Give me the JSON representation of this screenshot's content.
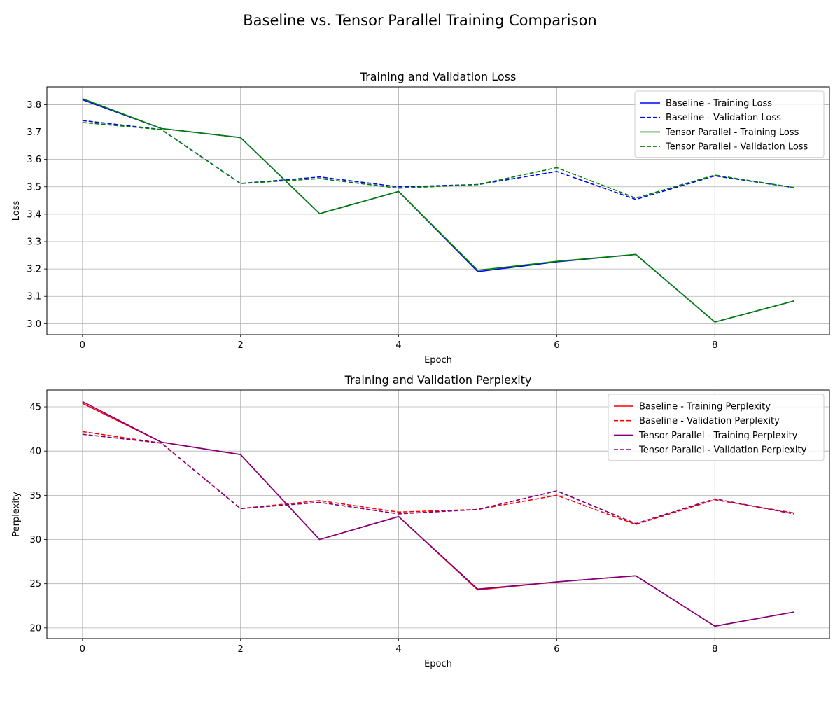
{
  "figure": {
    "suptitle": "Baseline vs. Tensor Parallel Training Comparison"
  },
  "chart_data": [
    {
      "type": "line",
      "title": "Training and Validation Loss",
      "xlabel": "Epoch",
      "ylabel": "Loss",
      "x": [
        0,
        1,
        2,
        3,
        4,
        5,
        6,
        7,
        8,
        9
      ],
      "xlim": [
        -0.45,
        9.45
      ],
      "ylim": [
        2.96,
        3.865
      ],
      "xticks": [
        0,
        2,
        4,
        6,
        8
      ],
      "yticks": [
        3.0,
        3.1,
        3.2,
        3.3,
        3.4,
        3.5,
        3.6,
        3.7,
        3.8
      ],
      "ytick_labels": [
        "3.0",
        "3.1",
        "3.2",
        "3.3",
        "3.4",
        "3.5",
        "3.6",
        "3.7",
        "3.8"
      ],
      "grid": true,
      "legend_position": "upper-right",
      "series": [
        {
          "name": "Baseline - Training Loss",
          "color": "#0000ff",
          "style": "solid",
          "values": [
            3.818,
            3.713,
            3.68,
            3.402,
            3.483,
            3.19,
            3.226,
            3.253,
            3.006,
            3.083
          ]
        },
        {
          "name": "Baseline - Validation Loss",
          "color": "#0000ff",
          "style": "dashed",
          "values": [
            3.742,
            3.709,
            3.512,
            3.536,
            3.5,
            3.508,
            3.556,
            3.454,
            3.54,
            3.497
          ]
        },
        {
          "name": "Tensor Parallel - Training Loss",
          "color": "#008000",
          "style": "solid",
          "values": [
            3.822,
            3.713,
            3.68,
            3.402,
            3.483,
            3.195,
            3.228,
            3.253,
            3.006,
            3.083
          ]
        },
        {
          "name": "Tensor Parallel - Validation Loss",
          "color": "#008000",
          "style": "dashed",
          "values": [
            3.735,
            3.709,
            3.512,
            3.53,
            3.495,
            3.508,
            3.57,
            3.459,
            3.543,
            3.497
          ]
        }
      ]
    },
    {
      "type": "line",
      "title": "Training and Validation Perplexity",
      "xlabel": "Epoch",
      "ylabel": "Perplexity",
      "x": [
        0,
        1,
        2,
        3,
        4,
        5,
        6,
        7,
        8,
        9
      ],
      "xlim": [
        -0.45,
        9.45
      ],
      "ylim": [
        18.8,
        46.9
      ],
      "xticks": [
        0,
        2,
        4,
        6,
        8
      ],
      "yticks": [
        20,
        25,
        30,
        35,
        40,
        45
      ],
      "ytick_labels": [
        "20",
        "25",
        "30",
        "35",
        "40",
        "45"
      ],
      "grid": true,
      "legend_position": "upper-right",
      "series": [
        {
          "name": "Baseline - Training Perplexity",
          "color": "#ff0000",
          "style": "solid",
          "values": [
            45.4,
            41.0,
            39.6,
            30.0,
            32.6,
            24.3,
            25.2,
            25.9,
            20.2,
            21.8
          ]
        },
        {
          "name": "Baseline - Validation Perplexity",
          "color": "#ff0000",
          "style": "dashed",
          "values": [
            42.2,
            40.9,
            33.5,
            34.4,
            33.1,
            33.4,
            35.0,
            31.7,
            34.5,
            33.0
          ]
        },
        {
          "name": "Tensor Parallel - Training Perplexity",
          "color": "#800080",
          "style": "solid",
          "values": [
            45.6,
            41.0,
            39.6,
            30.0,
            32.6,
            24.4,
            25.2,
            25.9,
            20.2,
            21.8
          ]
        },
        {
          "name": "Tensor Parallel - Validation Perplexity",
          "color": "#800080",
          "style": "dashed",
          "values": [
            41.9,
            40.9,
            33.5,
            34.2,
            32.9,
            33.4,
            35.5,
            31.8,
            34.6,
            32.9
          ]
        }
      ]
    }
  ]
}
